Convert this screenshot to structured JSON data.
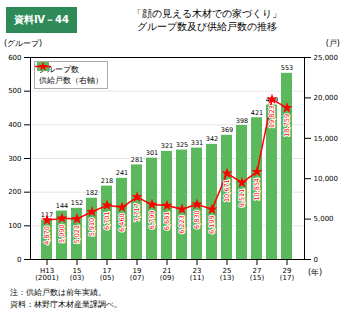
{
  "chart_data": {
    "type": "bar",
    "title": "「顔の見える木材での家づくり」",
    "subtitle": "グループ数及び供給戸数の推移",
    "annotations": [
      "資料Ⅳ－44",
      "注：供給戸数は前年実績。",
      "資料：林野庁木材産業課調べ。"
    ],
    "xlabel": "(年)",
    "ylabel": "(グループ)",
    "y2label": "(戸)",
    "categories": [
      "H13\n(2001)",
      null,
      "15\n(03)",
      null,
      "17\n(05)",
      null,
      "19\n(07)",
      null,
      "21\n(09)",
      null,
      "23\n(11)",
      null,
      "25\n(13)",
      null,
      "27\n(15)",
      null,
      "29\n(17)"
    ],
    "series": [
      {
        "name": "グループ数",
        "type": "bar",
        "color": "#5cb85c",
        "values": [
          117,
          144,
          152,
          182,
          218,
          241,
          281,
          301,
          321,
          325,
          331,
          342,
          369,
          398,
          421,
          459,
          553
        ]
      },
      {
        "name": "供給戸数（右軸）",
        "type": "line",
        "axis": "y2",
        "color": "#ff0000",
        "marker": "star",
        "values": [
          4870,
          5090,
          5021,
          5910,
          6701,
          6460,
          7717,
          6799,
          6681,
          6223,
          6830,
          6199,
          10671,
          9511,
          10854,
          19823,
          18759
        ],
        "value_labels": [
          "4,870",
          "5,090",
          "5,021",
          "5,910",
          "6,701",
          "6,460",
          "7,717",
          "6,799",
          "6,681",
          "6,223",
          "6,830",
          "6,199",
          "10,671",
          "9,511",
          "10,854",
          "19,823",
          "18,759"
        ]
      }
    ],
    "ylim": [
      0,
      600
    ],
    "yticks": [
      0,
      100,
      200,
      300,
      400,
      500,
      600
    ],
    "y2lim": [
      0,
      25000
    ],
    "y2ticks": [
      0,
      {
        "value": 5000,
        "label": "5,000"
      },
      {
        "value": 10000,
        "label": "10,000"
      },
      {
        "value": 15000,
        "label": "15,000"
      },
      {
        "value": 20000,
        "label": "20,000"
      },
      {
        "value": 25000,
        "label": "25,000"
      }
    ],
    "grid": true,
    "legend": "upper left",
    "data_labels": true
  }
}
